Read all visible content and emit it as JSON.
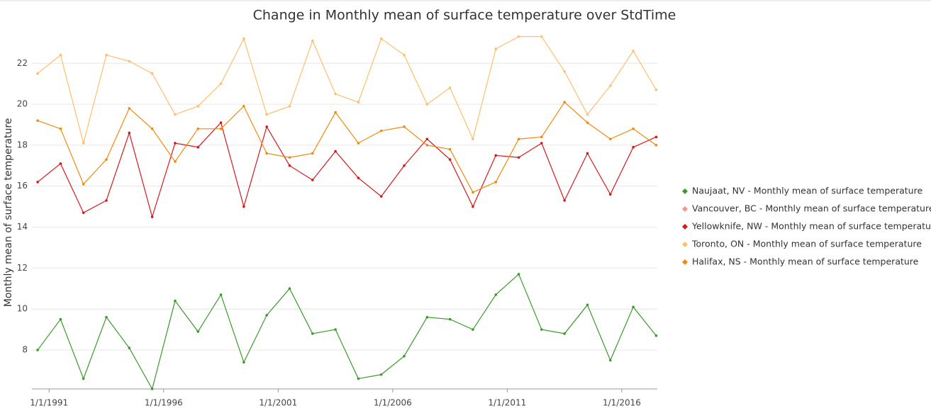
{
  "chart_data": {
    "type": "line",
    "title": "Change in Monthly mean of surface temperature over StdTime",
    "y_label": "Monthly mean of surface temperature",
    "x": [
      1990.5,
      1991.5,
      1992.5,
      1993.5,
      1994.5,
      1995.5,
      1996.5,
      1997.5,
      1998.5,
      1999.5,
      2000.5,
      2001.5,
      2002.5,
      2003.5,
      2004.5,
      2005.5,
      2006.5,
      2007.5,
      2008.5,
      2009.5,
      2010.5,
      2011.5,
      2012.5,
      2013.5,
      2014.5,
      2015.5,
      2016.5,
      2017.5
    ],
    "xlim": [
      1990.25,
      2017.55
    ],
    "xticks": [
      {
        "value": 1991,
        "label": "1/1/1991"
      },
      {
        "value": 1996,
        "label": "1/1/1996"
      },
      {
        "value": 2001,
        "label": "1/1/2001"
      },
      {
        "value": 2006,
        "label": "1/1/2006"
      },
      {
        "value": 2011,
        "label": "1/1/2011"
      },
      {
        "value": 2016,
        "label": "1/1/2016"
      }
    ],
    "ylim": [
      6.1,
      23.6
    ],
    "yticks": [
      8,
      10,
      12,
      14,
      16,
      18,
      20,
      22
    ],
    "grid": true,
    "legend": "right",
    "series": [
      {
        "name": "Naujaat, NV - Monthly mean of surface temperature",
        "color": "#3a9a2a",
        "values": [
          8.0,
          9.5,
          6.6,
          9.6,
          8.1,
          6.1,
          10.4,
          8.9,
          10.7,
          7.4,
          9.7,
          11.0,
          8.8,
          9.0,
          6.6,
          6.8,
          7.7,
          9.6,
          9.5,
          9.0,
          10.7,
          11.7,
          9.0,
          8.8,
          10.2,
          7.5,
          10.1,
          8.7
        ]
      },
      {
        "name": "Vancouver, BC - Monthly mean of surface temperature",
        "color": "#f4948f",
        "values": [
          null,
          null,
          null,
          null,
          null,
          null,
          null,
          null,
          null,
          null,
          null,
          null,
          null,
          null,
          null,
          null,
          null,
          null,
          null,
          null,
          null,
          null,
          null,
          null,
          null,
          null,
          null,
          null
        ]
      },
      {
        "name": "Yellowknife, NW - Monthly mean of surface temperature",
        "color": "#d7191c",
        "values": [
          16.2,
          17.1,
          14.7,
          15.3,
          18.6,
          14.5,
          18.1,
          17.9,
          19.1,
          15.0,
          18.9,
          17.0,
          16.3,
          17.7,
          16.4,
          15.5,
          17.0,
          18.3,
          17.3,
          15.0,
          17.5,
          17.4,
          18.1,
          15.3,
          17.6,
          15.6,
          17.9,
          18.4
        ]
      },
      {
        "name": "Toronto, ON - Monthly mean of surface temperature",
        "color": "#fdbf6f",
        "values": [
          21.5,
          22.4,
          18.1,
          22.4,
          22.1,
          21.5,
          19.5,
          19.9,
          21.0,
          23.2,
          19.5,
          19.9,
          23.1,
          20.5,
          20.1,
          23.2,
          22.4,
          20.0,
          20.8,
          18.3,
          22.7,
          23.3,
          23.3,
          21.6,
          19.5,
          20.9,
          22.6,
          20.7
        ]
      },
      {
        "name": "Halifax, NS - Monthly mean of surface temperature",
        "color": "#f08a0c",
        "values": [
          19.2,
          18.8,
          16.1,
          17.3,
          19.8,
          18.8,
          17.2,
          18.8,
          18.8,
          19.9,
          17.6,
          17.4,
          17.6,
          19.6,
          18.1,
          18.7,
          18.9,
          18.0,
          17.8,
          15.7,
          16.2,
          18.3,
          18.4,
          20.1,
          19.1,
          18.3,
          18.8,
          18.0
        ]
      }
    ]
  }
}
